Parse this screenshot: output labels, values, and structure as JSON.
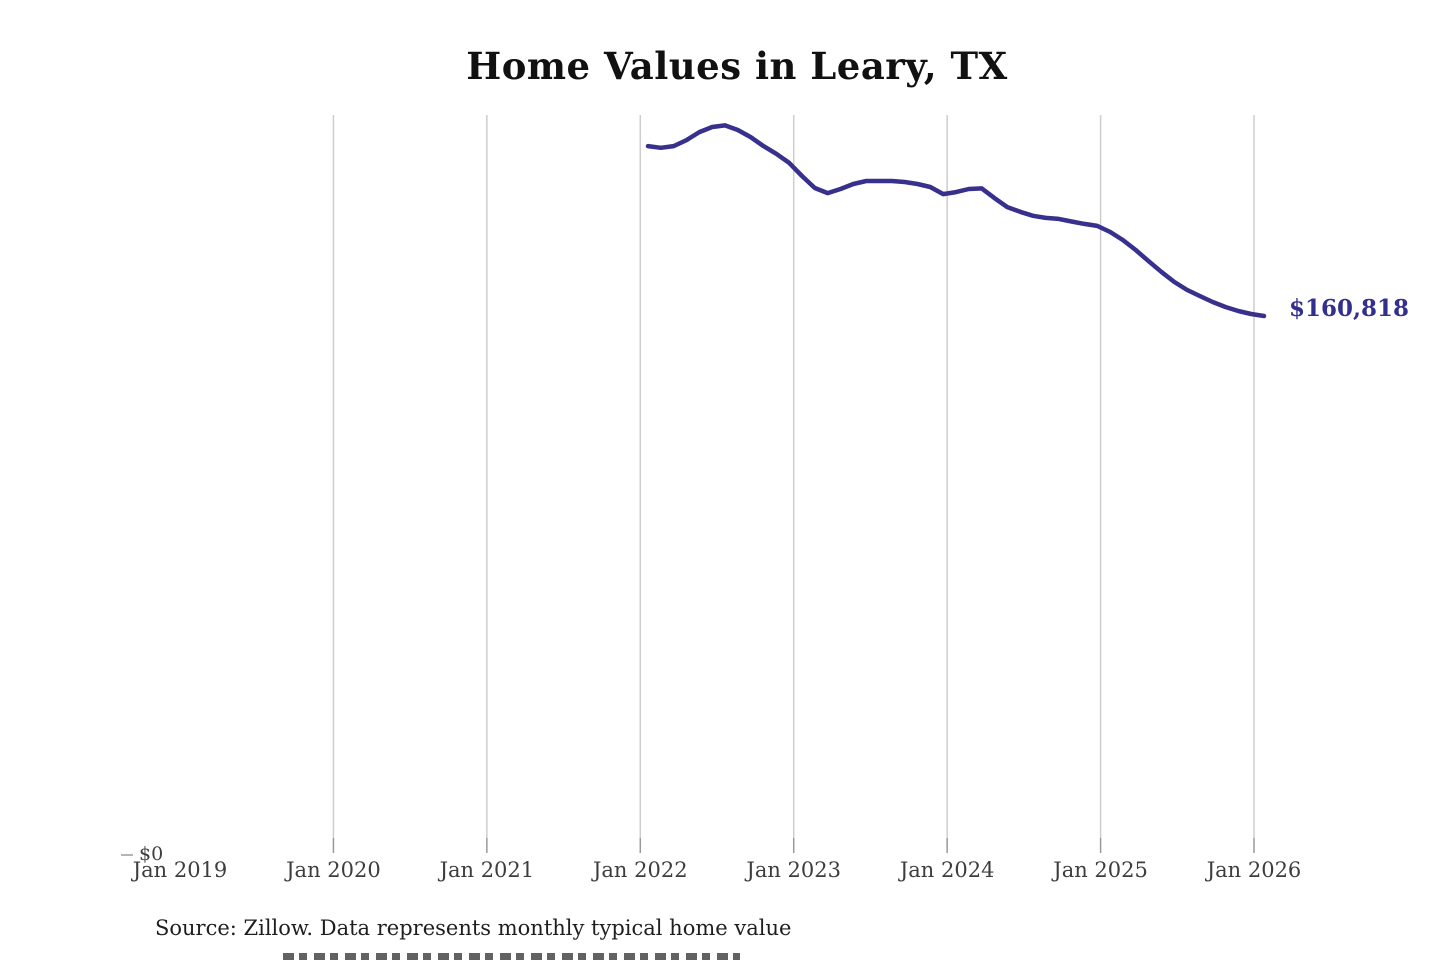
{
  "chart": {
    "title": "Home Values in Leary, TX",
    "source_note": "Source: Zillow. Data represents monthly typical home value"
  },
  "chart_data": {
    "type": "line",
    "title": "Home Values in Leary, TX",
    "series_name": "Monthly typical home value",
    "source": "Source: Zillow. Data represents monthly typical home value",
    "x": [
      "Feb 2022",
      "Mar 2022",
      "Apr 2022",
      "May 2022",
      "Jun 2022",
      "Jul 2022",
      "Aug 2022",
      "Sep 2022",
      "Oct 2022",
      "Nov 2022",
      "Dec 2022",
      "Jan 2023",
      "Feb 2023",
      "Mar 2023",
      "Apr 2023",
      "May 2023",
      "Jun 2023",
      "Jul 2023",
      "Aug 2023",
      "Sep 2023",
      "Oct 2023",
      "Nov 2023",
      "Dec 2023",
      "Jan 2024",
      "Feb 2024",
      "Mar 2024",
      "Apr 2024",
      "May 2024",
      "Jun 2024",
      "Jul 2024",
      "Aug 2024",
      "Sep 2024",
      "Oct 2024",
      "Nov 2024",
      "Dec 2024",
      "Jan 2025",
      "Feb 2025",
      "Mar 2025",
      "Apr 2025",
      "May 2025",
      "Jun 2025",
      "Jul 2025",
      "Aug 2025",
      "Sep 2025",
      "Oct 2025",
      "Nov 2025",
      "Dec 2025",
      "Jan 2026",
      "Feb 2026"
    ],
    "values": [
      211500,
      211000,
      211500,
      213300,
      215700,
      217200,
      217700,
      216300,
      214200,
      211500,
      209200,
      206500,
      202600,
      199000,
      197500,
      198700,
      200200,
      201100,
      201100,
      201100,
      200800,
      200200,
      199300,
      197200,
      197800,
      198700,
      198900,
      196000,
      193300,
      191900,
      190700,
      190100,
      189800,
      189000,
      188300,
      187700,
      185900,
      183500,
      180500,
      177200,
      174000,
      171000,
      168600,
      166800,
      165000,
      163500,
      162300,
      161400,
      160818
    ],
    "x_axis_ticks": [
      "Jan 2019",
      "Jan 2020",
      "Jan 2021",
      "Jan 2022",
      "Jan 2023",
      "Jan 2024",
      "Jan 2025",
      "Jan 2026"
    ],
    "y_axis_zero_label": "$0",
    "end_label": "$160,818",
    "end_value": 160818,
    "ylim": [
      0,
      221000
    ],
    "grid": "vertical-only",
    "legend": "none",
    "line_color": "#38308d",
    "end_label_color": "#332f8f",
    "gridline_color": "#cdcdcd",
    "tick_color": "#9a9a9a",
    "axis_label_color": "#3d3d3d"
  }
}
